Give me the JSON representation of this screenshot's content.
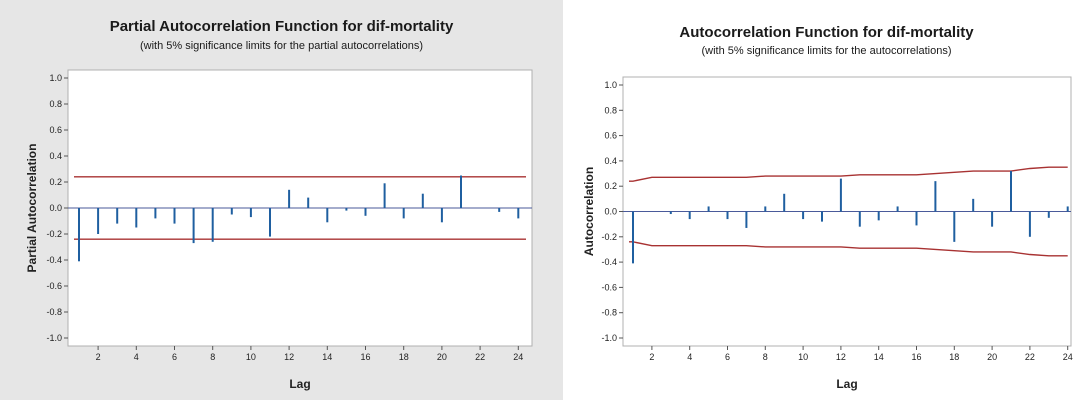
{
  "chart_data": [
    {
      "type": "bar",
      "title": "Partial Autocorrelation Function for dif-mortality",
      "subtitle": "(with 5% significance limits for the partial autocorrelations)",
      "xlabel": "Lag",
      "ylabel": "Partial Autocorrelation",
      "ylim": [
        -1.0,
        1.0
      ],
      "yticks": [
        "1.0",
        "0.8",
        "0.6",
        "0.4",
        "0.2",
        "0.0",
        "-0.2",
        "-0.4",
        "-0.6",
        "-0.8",
        "-1.0"
      ],
      "xticks": [
        "2",
        "4",
        "6",
        "8",
        "10",
        "12",
        "14",
        "16",
        "18",
        "20",
        "22",
        "24"
      ],
      "lags": [
        1,
        2,
        3,
        4,
        5,
        6,
        7,
        8,
        9,
        10,
        11,
        12,
        13,
        14,
        15,
        16,
        17,
        18,
        19,
        20,
        21,
        22,
        23,
        24
      ],
      "values": [
        -0.41,
        -0.2,
        -0.12,
        -0.15,
        -0.08,
        -0.12,
        -0.27,
        -0.26,
        -0.05,
        -0.07,
        -0.22,
        0.14,
        0.08,
        -0.11,
        -0.02,
        -0.06,
        0.19,
        -0.08,
        0.11,
        -0.11,
        0.25,
        0.0,
        -0.03,
        -0.08
      ],
      "significance_limits": {
        "upper": [
          0.24,
          0.24,
          0.24,
          0.24,
          0.24,
          0.24,
          0.24,
          0.24,
          0.24,
          0.24,
          0.24,
          0.24,
          0.24,
          0.24,
          0.24,
          0.24,
          0.24,
          0.24,
          0.24,
          0.24,
          0.24,
          0.24,
          0.24,
          0.24
        ],
        "lower": [
          -0.24,
          -0.24,
          -0.24,
          -0.24,
          -0.24,
          -0.24,
          -0.24,
          -0.24,
          -0.24,
          -0.24,
          -0.24,
          -0.24,
          -0.24,
          -0.24,
          -0.24,
          -0.24,
          -0.24,
          -0.24,
          -0.24,
          -0.24,
          -0.24,
          -0.24,
          -0.24,
          -0.24
        ]
      },
      "colors": {
        "bars": "#1f5fa0",
        "limits": "#a83232",
        "zero_line": "#4a5a9a"
      },
      "grid": false
    },
    {
      "type": "bar",
      "title": "Autocorrelation Function for dif-mortality",
      "subtitle": "(with 5% significance limits for the autocorrelations)",
      "xlabel": "Lag",
      "ylabel": "Autocorrelation",
      "ylim": [
        -1.0,
        1.0
      ],
      "yticks": [
        "1.0",
        "0.8",
        "0.6",
        "0.4",
        "0.2",
        "0.0",
        "-0.2",
        "-0.4",
        "-0.6",
        "-0.8",
        "-1.0"
      ],
      "xticks": [
        "2",
        "4",
        "6",
        "8",
        "10",
        "12",
        "14",
        "16",
        "18",
        "20",
        "22",
        "24"
      ],
      "lags": [
        1,
        2,
        3,
        4,
        5,
        6,
        7,
        8,
        9,
        10,
        11,
        12,
        13,
        14,
        15,
        16,
        17,
        18,
        19,
        20,
        21,
        22,
        23,
        24
      ],
      "values": [
        -0.41,
        0.0,
        -0.02,
        -0.06,
        0.04,
        -0.06,
        -0.13,
        0.04,
        0.14,
        -0.06,
        -0.08,
        0.26,
        -0.12,
        -0.07,
        0.04,
        -0.11,
        0.24,
        -0.24,
        0.1,
        -0.12,
        0.32,
        -0.2,
        -0.05,
        0.04
      ],
      "significance_limits": {
        "upper": [
          0.24,
          0.27,
          0.27,
          0.27,
          0.27,
          0.27,
          0.27,
          0.28,
          0.28,
          0.28,
          0.28,
          0.28,
          0.29,
          0.29,
          0.29,
          0.29,
          0.3,
          0.31,
          0.32,
          0.32,
          0.32,
          0.34,
          0.35,
          0.35
        ],
        "lower": [
          -0.24,
          -0.27,
          -0.27,
          -0.27,
          -0.27,
          -0.27,
          -0.27,
          -0.28,
          -0.28,
          -0.28,
          -0.28,
          -0.28,
          -0.29,
          -0.29,
          -0.29,
          -0.29,
          -0.3,
          -0.31,
          -0.32,
          -0.32,
          -0.32,
          -0.34,
          -0.35,
          -0.35
        ]
      },
      "colors": {
        "bars": "#1f5fa0",
        "limits": "#a83232",
        "zero_line": "#4a5a9a"
      },
      "grid": false
    }
  ]
}
